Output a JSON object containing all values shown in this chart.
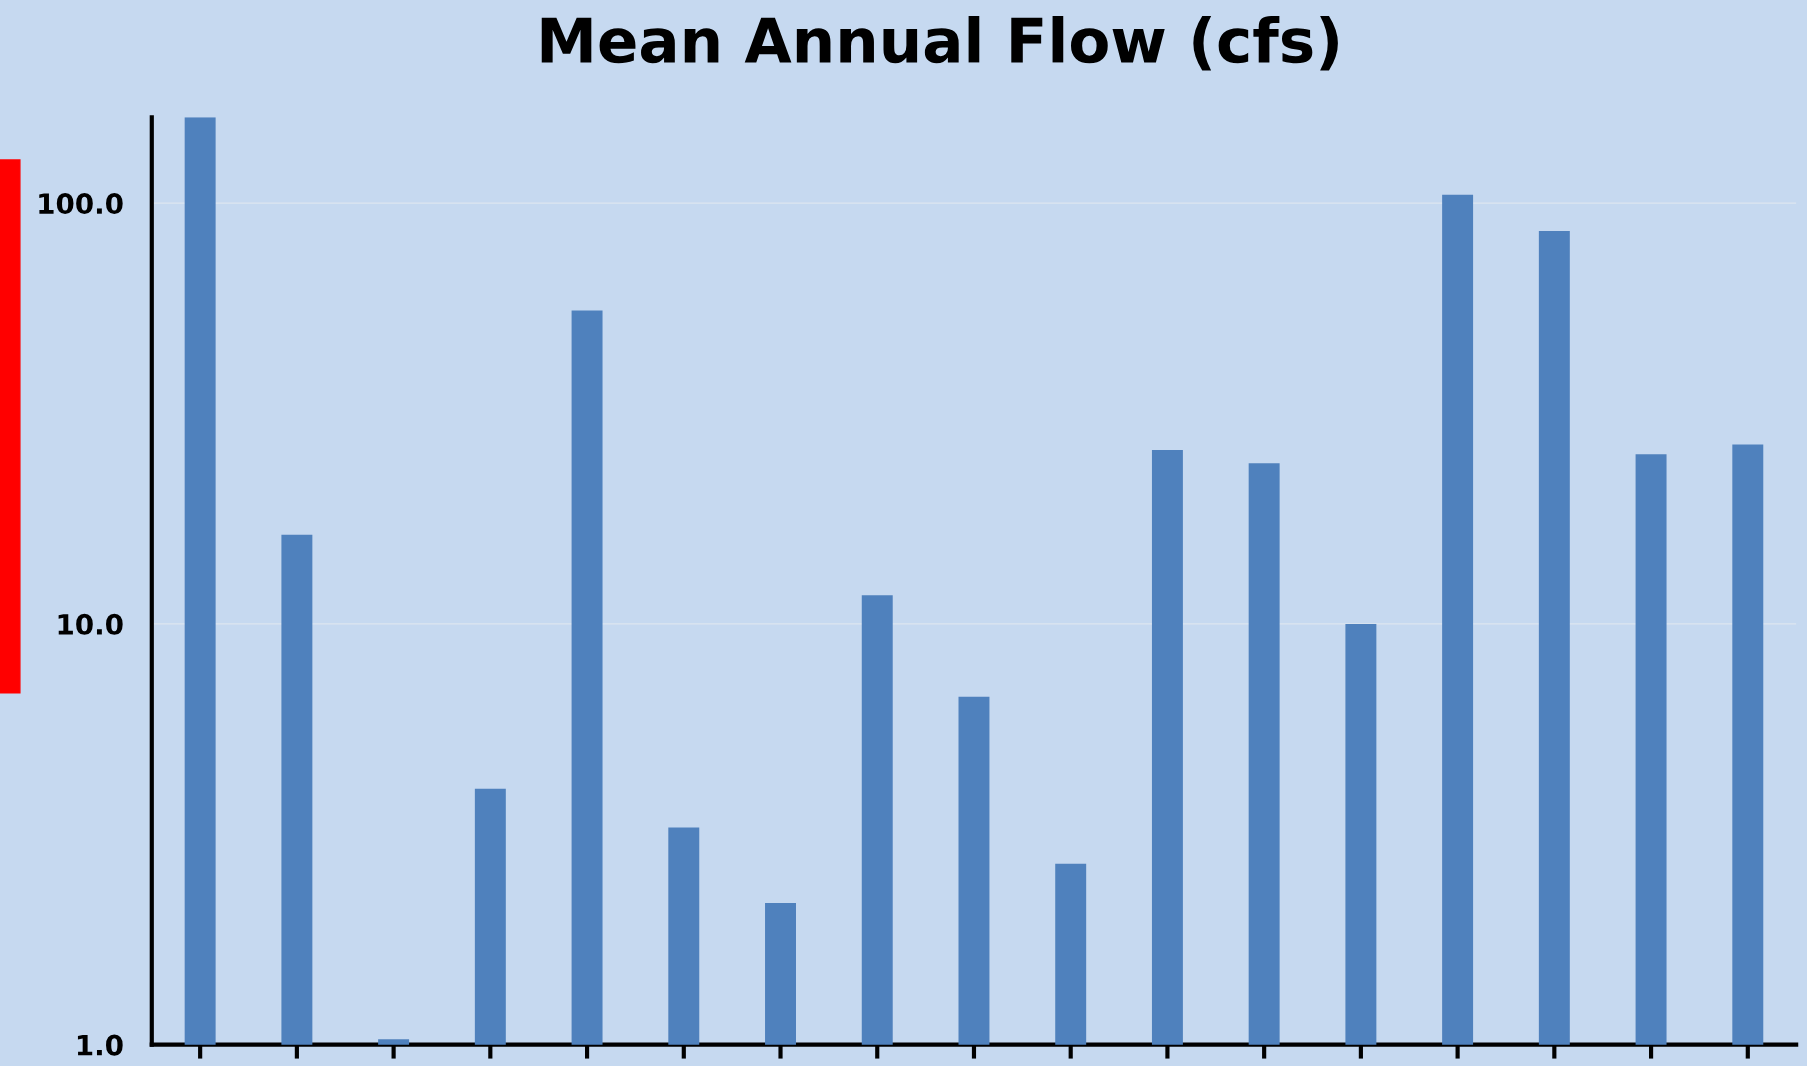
{
  "chart_data": {
    "type": "bar",
    "title": "Mean Annual Flow (cfs)",
    "categories": [
      null,
      null,
      null,
      null,
      null,
      null,
      null,
      null,
      null,
      null,
      null,
      null,
      null,
      null,
      null,
      null,
      null
    ],
    "values": [
      160,
      16.3,
      1.03,
      4.06,
      55.6,
      3.28,
      2.17,
      11.7,
      6.71,
      2.69,
      25.9,
      24.1,
      10.0,
      104.7,
      85.9,
      25.3,
      26.7
    ],
    "color": "#4f81bd",
    "log": true,
    "ylim": [
      1,
      160
    ],
    "yticks": [
      {
        "value": 1,
        "label": "1.0"
      },
      {
        "value": 10,
        "label": "10.0"
      },
      {
        "value": 100,
        "label": "100.0"
      }
    ],
    "grid": "y",
    "legend": false
  }
}
